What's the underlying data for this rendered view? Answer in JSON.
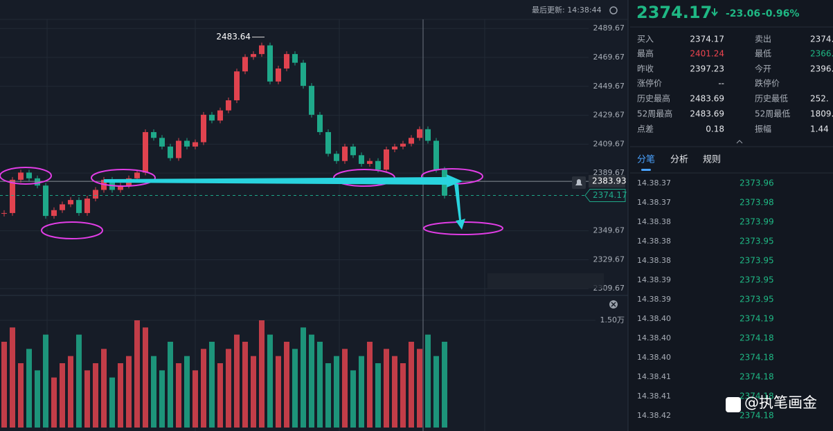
{
  "header": {
    "last_update": "最后更新: 14:38:44"
  },
  "chart": {
    "ylim": [
      2305,
      2496
    ],
    "yticks": [
      2489.67,
      2469.67,
      2449.67,
      2429.67,
      2409.67,
      2389.67,
      2349.67,
      2329.67,
      2309.67
    ],
    "closes": [
      2362,
      2385,
      2390,
      2386,
      2381,
      2360,
      2364,
      2368,
      2371,
      2362,
      2372,
      2378,
      2385,
      2378,
      2381,
      2386,
      2390,
      2418,
      2414,
      2408,
      2400,
      2412,
      2408,
      2411,
      2430,
      2426,
      2433,
      2440,
      2460,
      2470,
      2472,
      2478,
      2453,
      2462,
      2472,
      2466,
      2450,
      2430,
      2418,
      2403,
      2398,
      2408,
      2402,
      2396,
      2398,
      2392,
      2406,
      2408,
      2410,
      2414,
      2420,
      2412,
      2392,
      2374
    ],
    "max_label": "2483.64",
    "last_line": 2383.93,
    "bid_line": 2374.17,
    "vol_ylim": [
      0,
      1.8
    ],
    "vol_ticks": [
      {
        "value": 1.5,
        "label": "1.50万"
      }
    ],
    "volumes": [
      1.2,
      1.4,
      0.9,
      1.1,
      0.8,
      1.3,
      0.7,
      0.9,
      1.0,
      1.3,
      0.8,
      0.9,
      1.1,
      0.7,
      0.9,
      1.0,
      1.5,
      1.4,
      1.0,
      0.8,
      1.2,
      0.9,
      1.0,
      0.8,
      1.1,
      1.2,
      0.9,
      1.1,
      1.3,
      1.2,
      1.0,
      1.5,
      1.3,
      1.0,
      1.2,
      1.1,
      1.4,
      1.3,
      1.2,
      0.9,
      1.0,
      1.1,
      0.8,
      1.0,
      1.2,
      0.9,
      1.1,
      1.0,
      0.9,
      1.2,
      1.1,
      1.3,
      1.0,
      1.2
    ]
  },
  "quote": {
    "price": "2374.17",
    "change": "-23.06",
    "change_pct": "-0.96%"
  },
  "stats": [
    [
      "买入",
      "2374.17",
      "卖出",
      "2374."
    ],
    [
      "最高",
      "2401.24",
      "最低",
      "2366."
    ],
    [
      "昨收",
      "2397.23",
      "今开",
      "2396."
    ],
    [
      "涨停价",
      "--",
      "跌停价"
    ],
    [
      "历史最高",
      "2483.69",
      "历史最低",
      "252."
    ],
    [
      "52周最高",
      "2483.69",
      "52周最低",
      "1809."
    ],
    [
      "点差",
      "0.18",
      "振幅",
      "1.44"
    ]
  ],
  "tabs": [
    "分笔",
    "分析",
    "规则"
  ],
  "trades": [
    [
      "14.38.37",
      "2373.96"
    ],
    [
      "14.38.37",
      "2373.98"
    ],
    [
      "14.38.38",
      "2373.99"
    ],
    [
      "14.38.38",
      "2373.95"
    ],
    [
      "14.38.38",
      "2373.95"
    ],
    [
      "14.38.39",
      "2373.95"
    ],
    [
      "14.38.39",
      "2373.95"
    ],
    [
      "14.38.40",
      "2374.19"
    ],
    [
      "14.38.40",
      "2374.18"
    ],
    [
      "14.38.40",
      "2374.18"
    ],
    [
      "14.38.41",
      "2374.18"
    ],
    [
      "14.38.41",
      "2374.18"
    ],
    [
      "14.38.42",
      "2374.18"
    ]
  ],
  "watermark": "@执笔画金"
}
